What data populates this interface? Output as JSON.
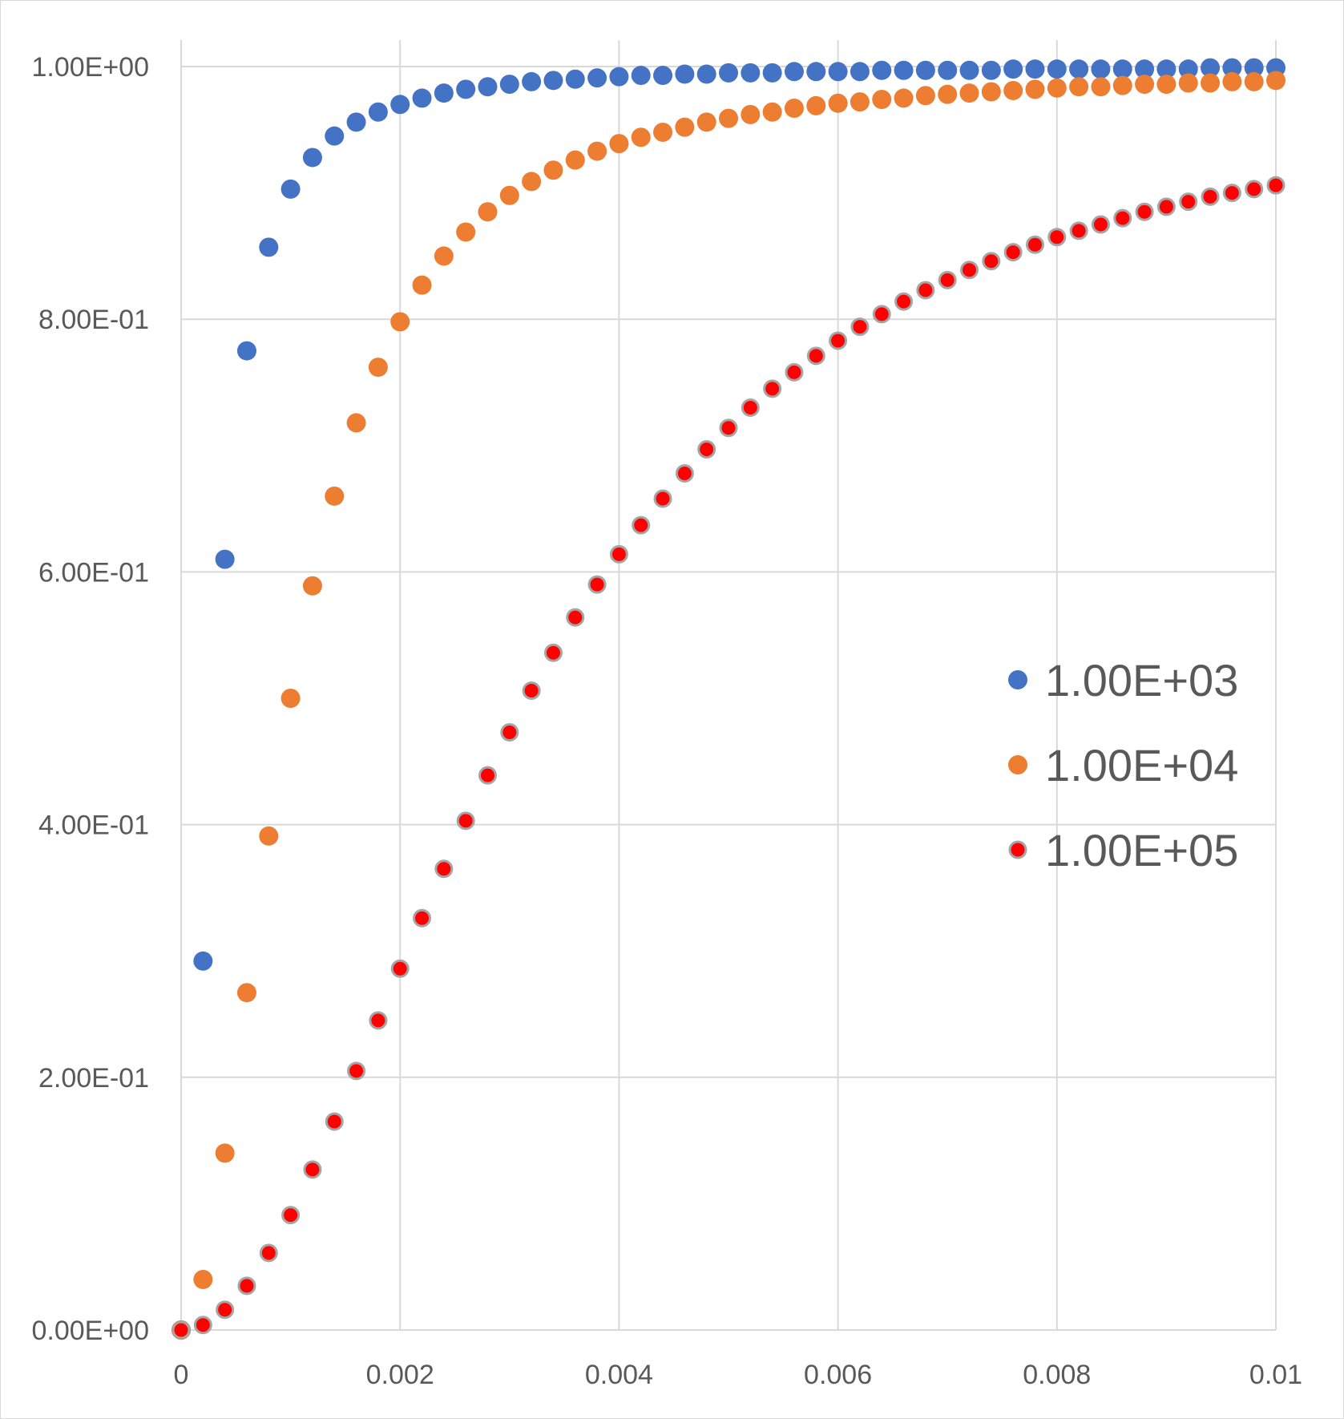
{
  "chart_data": {
    "type": "scatter",
    "title": "",
    "xlabel": "",
    "ylabel": "",
    "xlim": [
      0,
      0.01
    ],
    "ylim": [
      0,
      1
    ],
    "grid": true,
    "legend_position": "right",
    "x_ticks": [
      0,
      0.002,
      0.004,
      0.006,
      0.008,
      0.01
    ],
    "x_tick_labels": [
      "0",
      "0.002",
      "0.004",
      "0.006",
      "0.008",
      "0.01"
    ],
    "y_ticks": [
      0,
      0.2,
      0.4,
      0.6,
      0.8,
      1.0
    ],
    "y_tick_labels": [
      "0.00E+00",
      "2.00E-01",
      "4.00E-01",
      "6.00E-01",
      "8.00E-01",
      "1.00E+00"
    ],
    "x": [
      0,
      0.0002,
      0.0004,
      0.0006,
      0.0008,
      0.001,
      0.0012,
      0.0014,
      0.0016,
      0.0018,
      0.002,
      0.0022,
      0.0024,
      0.0026,
      0.0028,
      0.003,
      0.0032,
      0.0034,
      0.0036,
      0.0038,
      0.004,
      0.0042,
      0.0044,
      0.0046,
      0.0048,
      0.005,
      0.0052,
      0.0054,
      0.0056,
      0.0058,
      0.006,
      0.0062,
      0.0064,
      0.0066,
      0.0068,
      0.007,
      0.0072,
      0.0074,
      0.0076,
      0.0078,
      0.008,
      0.0082,
      0.0084,
      0.0086,
      0.0088,
      0.009,
      0.0092,
      0.0094,
      0.0096,
      0.0098,
      0.01
    ],
    "series": [
      {
        "name": "1.00E+03",
        "color": "#4472c4",
        "values": [
          0,
          0.292,
          0.61,
          0.775,
          0.857,
          0.903,
          0.928,
          0.945,
          0.956,
          0.964,
          0.97,
          0.975,
          0.979,
          0.982,
          0.984,
          0.986,
          0.988,
          0.989,
          0.99,
          0.991,
          0.992,
          0.993,
          0.993,
          0.994,
          0.994,
          0.995,
          0.995,
          0.995,
          0.996,
          0.996,
          0.996,
          0.996,
          0.997,
          0.997,
          0.997,
          0.997,
          0.997,
          0.997,
          0.998,
          0.998,
          0.998,
          0.998,
          0.998,
          0.998,
          0.998,
          0.998,
          0.998,
          0.999,
          0.999,
          0.999,
          0.999
        ]
      },
      {
        "name": "1.00E+04",
        "color": "#ed7d31",
        "values": [
          0,
          0.04,
          0.14,
          0.267,
          0.391,
          0.5,
          0.589,
          0.66,
          0.718,
          0.762,
          0.798,
          0.827,
          0.85,
          0.869,
          0.885,
          0.898,
          0.909,
          0.918,
          0.926,
          0.933,
          0.939,
          0.944,
          0.948,
          0.952,
          0.956,
          0.959,
          0.962,
          0.964,
          0.967,
          0.969,
          0.971,
          0.972,
          0.974,
          0.975,
          0.977,
          0.978,
          0.979,
          0.98,
          0.981,
          0.982,
          0.983,
          0.984,
          0.984,
          0.985,
          0.986,
          0.986,
          0.987,
          0.987,
          0.988,
          0.988,
          0.989
        ]
      },
      {
        "name": "1.00E+05",
        "color": "#ff0000",
        "values": [
          0,
          0.004,
          0.016,
          0.035,
          0.061,
          0.091,
          0.127,
          0.165,
          0.205,
          0.245,
          0.286,
          0.326,
          0.365,
          0.403,
          0.439,
          0.473,
          0.506,
          0.536,
          0.564,
          0.59,
          0.614,
          0.637,
          0.658,
          0.678,
          0.697,
          0.714,
          0.73,
          0.745,
          0.758,
          0.771,
          0.783,
          0.794,
          0.804,
          0.814,
          0.823,
          0.831,
          0.839,
          0.846,
          0.853,
          0.859,
          0.865,
          0.87,
          0.875,
          0.88,
          0.885,
          0.889,
          0.893,
          0.897,
          0.9,
          0.903,
          0.906
        ]
      }
    ]
  }
}
